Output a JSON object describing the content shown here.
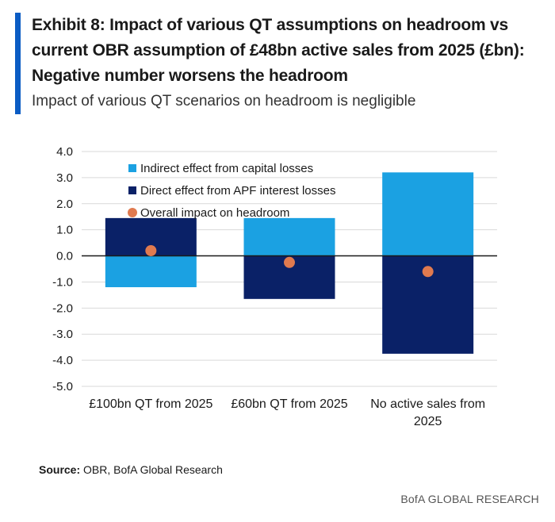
{
  "header": {
    "title": "Exhibit 8: Impact of various QT assumptions on headroom vs current OBR assumption of £48bn active sales from 2025 (£bn): Negative number worsens the headroom",
    "subtitle": "Impact of various QT scenarios on headroom is negligible"
  },
  "footer": {
    "source_label": "Source:",
    "source_text": "OBR, BofA Global Research",
    "brand": "BofA GLOBAL RESEARCH"
  },
  "colors": {
    "accent": "#0b5cc4",
    "indirect": "#1ba1e2",
    "direct": "#0a2167",
    "overall": "#e07a4f"
  },
  "chart_data": {
    "type": "bar",
    "stacked": true,
    "categories": [
      "£100bn QT from 2025",
      "£60bn QT from 2025",
      "No active sales from 2025"
    ],
    "series": [
      {
        "name": "Indirect effect from capital losses",
        "type": "bar",
        "values": [
          -1.2,
          1.45,
          3.2
        ]
      },
      {
        "name": "Direct effect from APF interest losses",
        "type": "bar",
        "values": [
          1.45,
          -1.65,
          -3.75
        ]
      },
      {
        "name": "Overall impact on headroom",
        "type": "scatter",
        "values": [
          0.2,
          -0.25,
          -0.6
        ]
      }
    ],
    "ylim": [
      -5.0,
      4.0
    ],
    "yticks": [
      "4.0",
      "3.0",
      "2.0",
      "1.0",
      "0.0",
      "-1.0",
      "-2.0",
      "-3.0",
      "-4.0",
      "-5.0"
    ],
    "grid": true,
    "legend_position": "top-left"
  }
}
